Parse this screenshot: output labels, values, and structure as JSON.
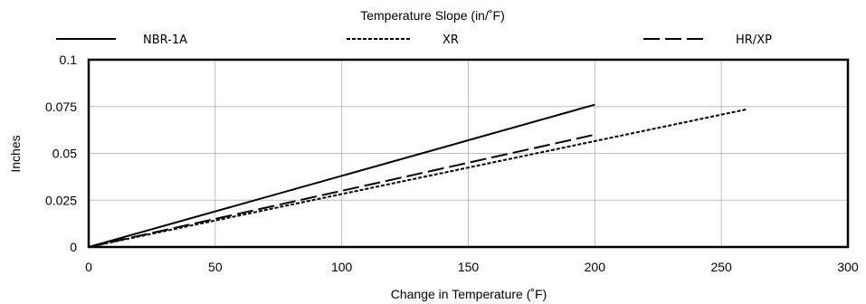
{
  "chart_data": {
    "type": "line",
    "title": "Temperature Slope (in/˚F)",
    "xlabel": "Change in Temperature (˚F)",
    "ylabel": "Inches",
    "xlim": [
      0,
      300
    ],
    "ylim": [
      0,
      0.1
    ],
    "x_ticks": [
      "0",
      "50",
      "100",
      "150",
      "200",
      "250",
      "300"
    ],
    "y_ticks": [
      "0",
      "0.025",
      "0.05",
      "0.075",
      "0.1"
    ],
    "grid": true,
    "legend_position": "top",
    "series": [
      {
        "name": "NBR-1A",
        "style": "solid",
        "color": "#000000",
        "x": [
          0,
          200
        ],
        "y": [
          0,
          0.076
        ]
      },
      {
        "name": "XR",
        "style": "dotted",
        "color": "#000000",
        "x": [
          0,
          260
        ],
        "y": [
          0,
          0.0735
        ]
      },
      {
        "name": "HR/XP",
        "style": "dashed",
        "color": "#000000",
        "x": [
          0,
          200
        ],
        "y": [
          0,
          0.06
        ]
      }
    ]
  }
}
